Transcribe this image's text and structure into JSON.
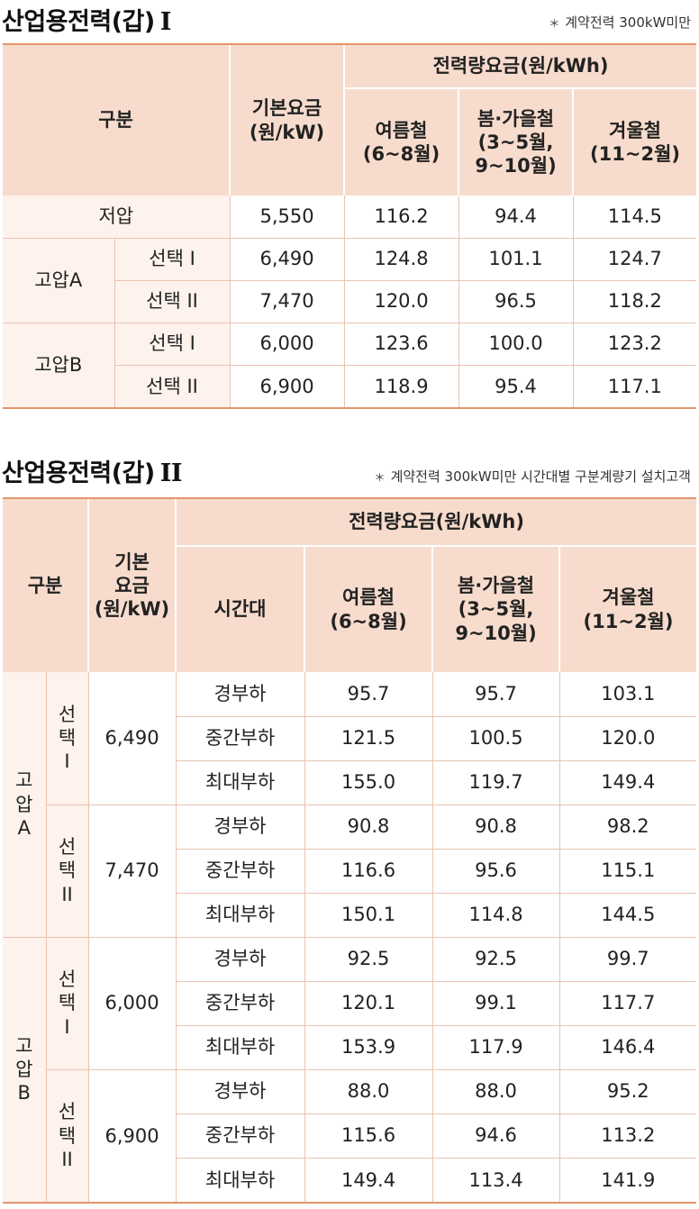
{
  "table1": {
    "title": "산업용전력(갑)",
    "title_roman": "I",
    "note": "계약전력 300kW미만",
    "header": {
      "category": "구분",
      "base_fee": "기본요금\n(원/kW)",
      "energy_fee": "전력량요금(원/kWh)",
      "summer": "여름철\n(6~8월)",
      "spring_fall": "봄·가을철\n(3~5월,\n9~10월)",
      "winter": "겨울철\n(11~2월)"
    },
    "rows": [
      {
        "group": "저압",
        "option": "",
        "base": "5,550",
        "summer": "116.2",
        "spring_fall": "94.4",
        "winter": "114.5"
      },
      {
        "group": "고압A",
        "option": "선택 I",
        "base": "6,490",
        "summer": "124.8",
        "spring_fall": "101.1",
        "winter": "124.7"
      },
      {
        "group": "",
        "option": "선택 II",
        "base": "7,470",
        "summer": "120.0",
        "spring_fall": "96.5",
        "winter": "118.2"
      },
      {
        "group": "고압B",
        "option": "선택 I",
        "base": "6,000",
        "summer": "123.6",
        "spring_fall": "100.0",
        "winter": "123.2"
      },
      {
        "group": "",
        "option": "선택 II",
        "base": "6,900",
        "summer": "118.9",
        "spring_fall": "95.4",
        "winter": "117.1"
      }
    ]
  },
  "table2": {
    "title": "산업용전력(갑)",
    "title_roman": "II",
    "note": "계약전력 300kW미만 시간대별 구분계량기 설치고객",
    "header": {
      "category": "구분",
      "base_fee": "기본\n요금\n(원/kW)",
      "energy_fee": "전력량요금(원/kWh)",
      "time_band": "시간대",
      "summer": "여름철\n(6~8월)",
      "spring_fall": "봄·가을철\n(3~5월,\n9~10월)",
      "winter": "겨울철\n(11~2월)"
    },
    "groups": [
      {
        "name": "고\n압\nA",
        "options": [
          {
            "name": "선\n택\nI",
            "base": "6,490",
            "bands": [
              {
                "band": "경부하",
                "summer": "95.7",
                "spring_fall": "95.7",
                "winter": "103.1"
              },
              {
                "band": "중간부하",
                "summer": "121.5",
                "spring_fall": "100.5",
                "winter": "120.0"
              },
              {
                "band": "최대부하",
                "summer": "155.0",
                "spring_fall": "119.7",
                "winter": "149.4"
              }
            ]
          },
          {
            "name": "선\n택\nII",
            "base": "7,470",
            "bands": [
              {
                "band": "경부하",
                "summer": "90.8",
                "spring_fall": "90.8",
                "winter": "98.2"
              },
              {
                "band": "중간부하",
                "summer": "116.6",
                "spring_fall": "95.6",
                "winter": "115.1"
              },
              {
                "band": "최대부하",
                "summer": "150.1",
                "spring_fall": "114.8",
                "winter": "144.5"
              }
            ]
          }
        ]
      },
      {
        "name": "고\n압\nB",
        "options": [
          {
            "name": "선\n택\nI",
            "base": "6,000",
            "bands": [
              {
                "band": "경부하",
                "summer": "92.5",
                "spring_fall": "92.5",
                "winter": "99.7"
              },
              {
                "band": "중간부하",
                "summer": "120.1",
                "spring_fall": "99.1",
                "winter": "117.7"
              },
              {
                "band": "최대부하",
                "summer": "153.9",
                "spring_fall": "117.9",
                "winter": "146.4"
              }
            ]
          },
          {
            "name": "선\n택\nII",
            "base": "6,900",
            "bands": [
              {
                "band": "경부하",
                "summer": "88.0",
                "spring_fall": "88.0",
                "winter": "95.2"
              },
              {
                "band": "중간부하",
                "summer": "115.6",
                "spring_fall": "94.6",
                "winter": "113.2"
              },
              {
                "band": "최대부하",
                "summer": "149.4",
                "spring_fall": "113.4",
                "winter": "141.9"
              }
            ]
          }
        ]
      }
    ]
  }
}
